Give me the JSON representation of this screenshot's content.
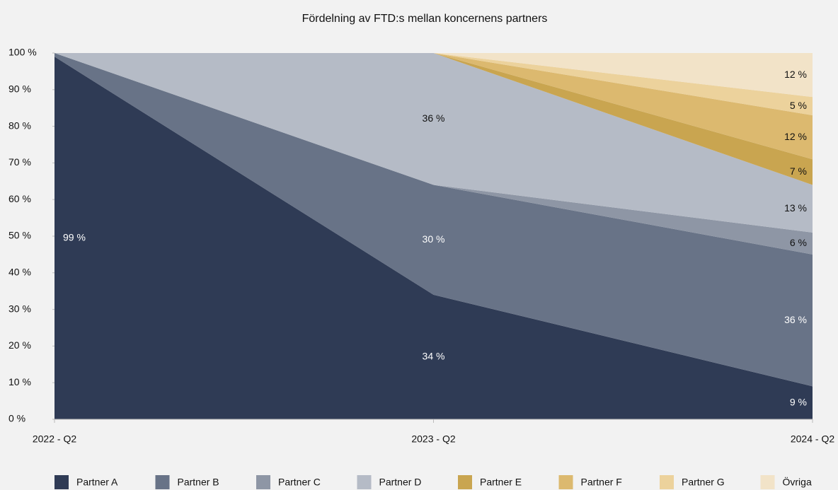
{
  "chart_data": {
    "type": "stacked_area_percent",
    "title": "Fördelning av FTD:s mellan koncernens partners",
    "categories": [
      "2022 - Q2",
      "2023 - Q2",
      "2024 - Q2"
    ],
    "series": [
      {
        "name": "Partner A",
        "color": "#2f3b55",
        "values": [
          99,
          34,
          9
        ],
        "value_labels": [
          "99 %",
          "34 %",
          "9 %"
        ]
      },
      {
        "name": "Partner B",
        "color": "#687387",
        "values": [
          1,
          30,
          36
        ],
        "value_labels": [
          null,
          "30 %",
          "36 %"
        ]
      },
      {
        "name": "Partner C",
        "color": "#8e96a5",
        "values": [
          0,
          0,
          6
        ],
        "value_labels": [
          null,
          null,
          "6 %"
        ]
      },
      {
        "name": "Partner D",
        "color": "#b5bbc6",
        "values": [
          0,
          36,
          13
        ],
        "value_labels": [
          null,
          "36 %",
          "13 %"
        ]
      },
      {
        "name": "Partner E",
        "color": "#c9a550",
        "values": [
          0,
          0,
          7
        ],
        "value_labels": [
          null,
          null,
          "7 %"
        ]
      },
      {
        "name": "Partner F",
        "color": "#dcb96f",
        "values": [
          0,
          0,
          12
        ],
        "value_labels": [
          null,
          null,
          "12 %"
        ]
      },
      {
        "name": "Partner G",
        "color": "#ecd29c",
        "values": [
          0,
          0,
          5
        ],
        "value_labels": [
          null,
          null,
          "5 %"
        ]
      },
      {
        "name": "Övriga",
        "color": "#f2e3c8",
        "values": [
          0,
          0,
          12
        ],
        "value_labels": [
          null,
          null,
          "12 %"
        ]
      }
    ],
    "ylim": [
      0,
      100
    ],
    "yticks": [
      {
        "value": 0,
        "label": "0 %"
      },
      {
        "value": 10,
        "label": "10 %"
      },
      {
        "value": 20,
        "label": "20 %"
      },
      {
        "value": 30,
        "label": "30 %"
      },
      {
        "value": 40,
        "label": "40 %"
      },
      {
        "value": 50,
        "label": "50 %"
      },
      {
        "value": 60,
        "label": "60 %"
      },
      {
        "value": 70,
        "label": "70 %"
      },
      {
        "value": 80,
        "label": "80 %"
      },
      {
        "value": 90,
        "label": "90 %"
      },
      {
        "value": 100,
        "label": "100 %"
      }
    ],
    "legend": "bottom"
  }
}
